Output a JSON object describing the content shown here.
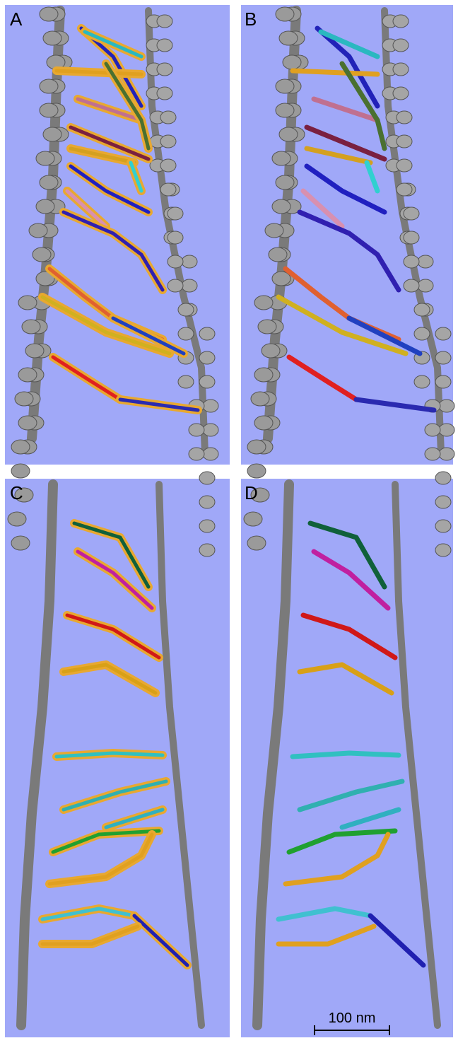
{
  "panels": [
    {
      "label": "A"
    },
    {
      "label": "B"
    },
    {
      "label": "C"
    },
    {
      "label": "D"
    }
  ],
  "scale_bar": {
    "label": "100 nm"
  }
}
